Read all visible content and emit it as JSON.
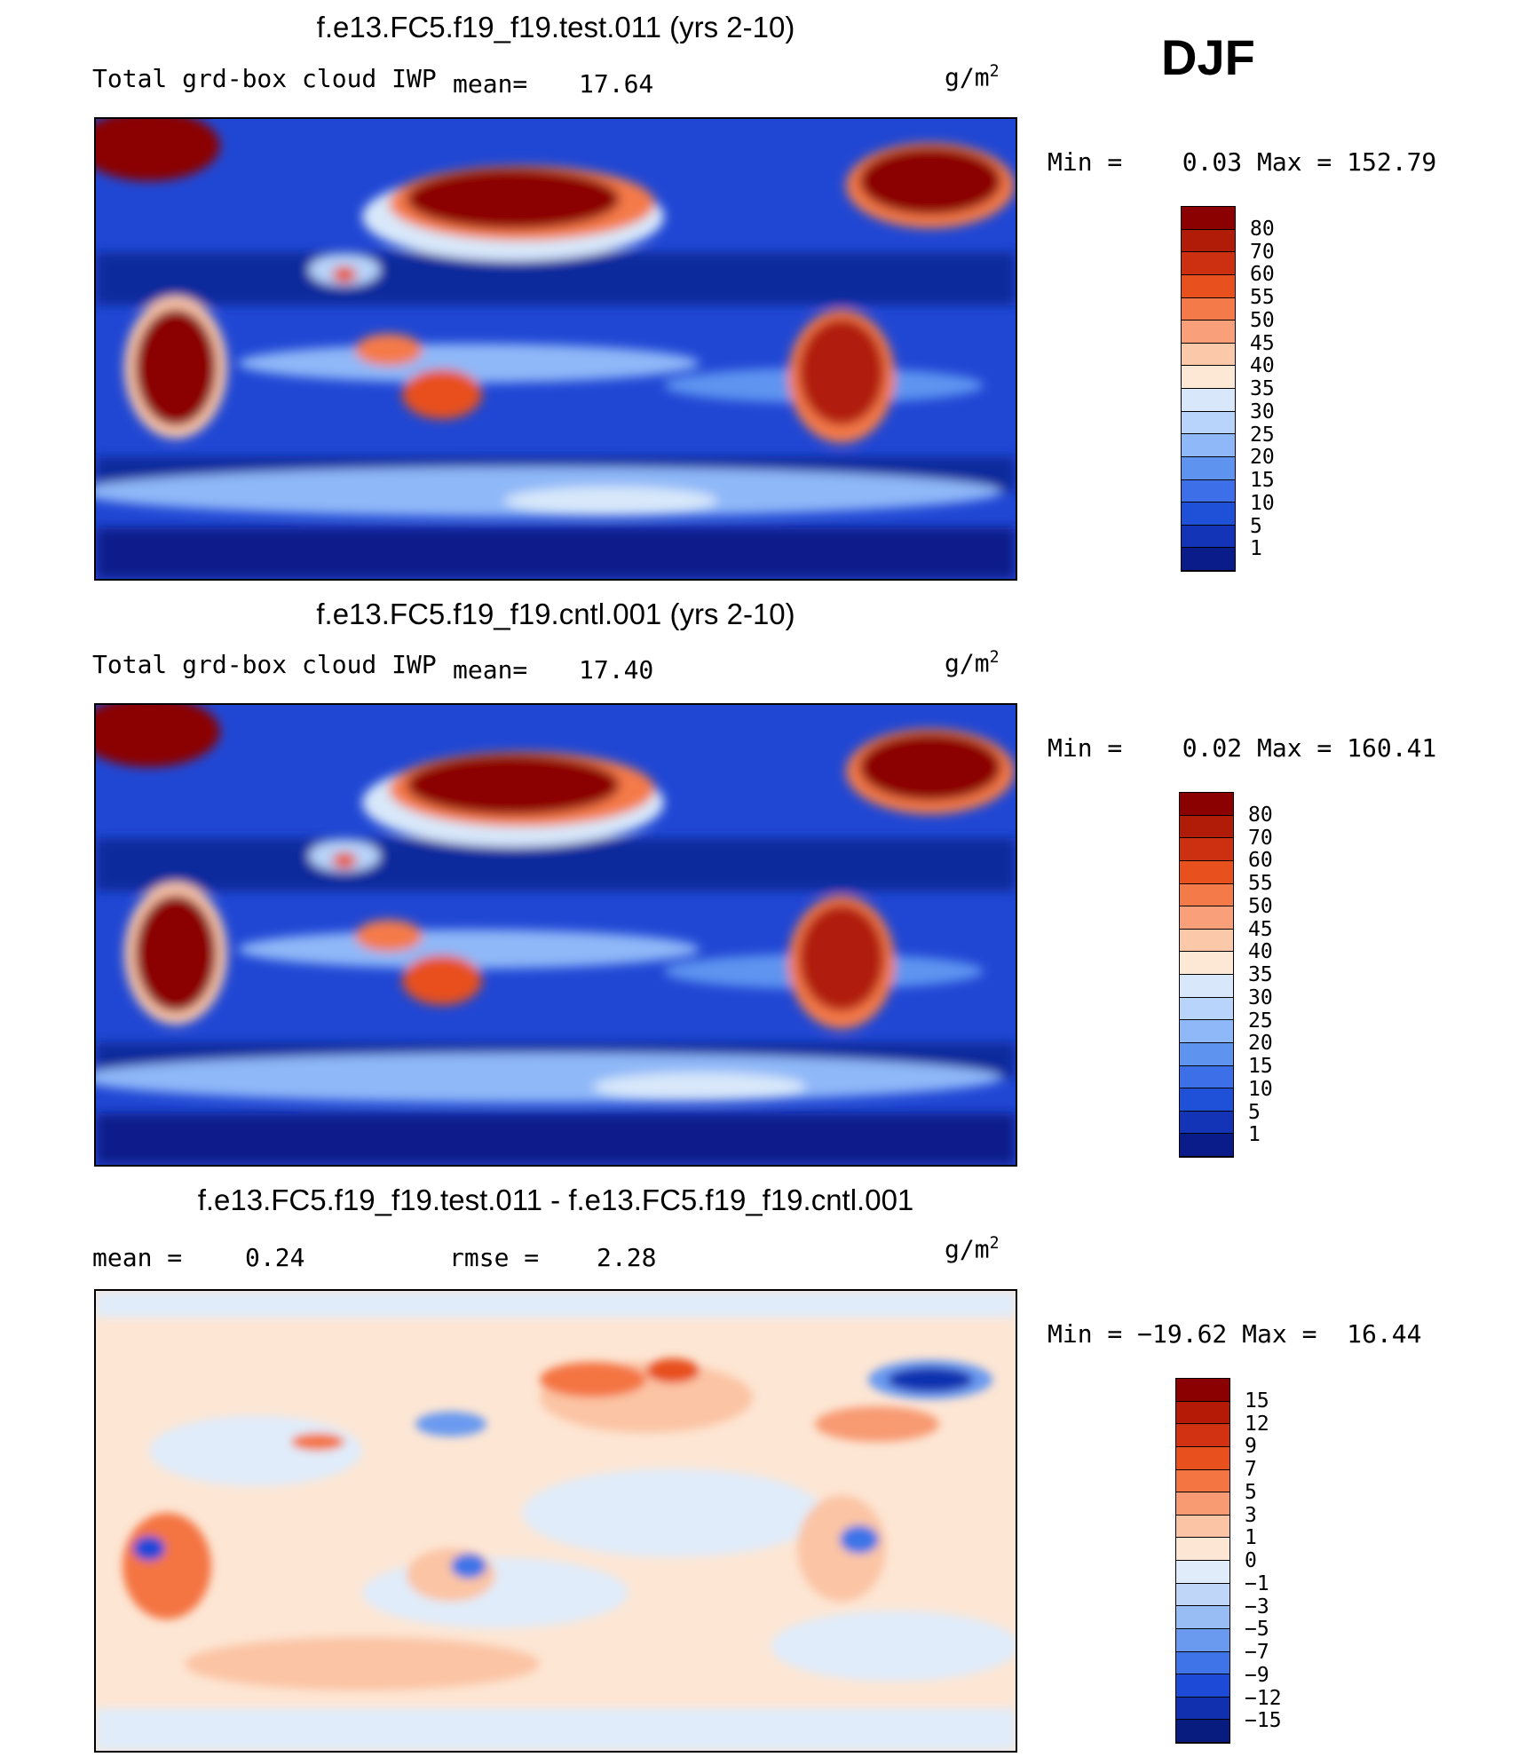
{
  "season": "DJF",
  "panels": [
    {
      "id": "test",
      "title": "f.e13.FC5.f19_f19.test.011 (yrs 2-10)",
      "variable": "Total grd-box cloud IWP",
      "stat1_label": "mean=",
      "stat1_value": "17.64",
      "units": "g/m",
      "units_sup": "2",
      "minmax": "Min =    0.03 Max = 152.79",
      "levels": [
        "80",
        "70",
        "60",
        "55",
        "50",
        "45",
        "40",
        "35",
        "30",
        "25",
        "20",
        "15",
        "10",
        "5",
        "1"
      ],
      "colors": [
        "#8b0000",
        "#b01c08",
        "#cc3010",
        "#e8501e",
        "#f57a4a",
        "#f9a07a",
        "#fcc8aa",
        "#fde8d6",
        "#d8e8fa",
        "#b8d4fa",
        "#8fb8f8",
        "#5e94f0",
        "#3d6fe8",
        "#1e50d8",
        "#1434b8",
        "#0a1c8a"
      ]
    },
    {
      "id": "cntl",
      "title": "f.e13.FC5.f19_f19.cntl.001 (yrs 2-10)",
      "variable": "Total grd-box cloud IWP",
      "stat1_label": "mean=",
      "stat1_value": "17.40",
      "units": "g/m",
      "units_sup": "2",
      "minmax": "Min =    0.02 Max = 160.41",
      "levels": [
        "80",
        "70",
        "60",
        "55",
        "50",
        "45",
        "40",
        "35",
        "30",
        "25",
        "20",
        "15",
        "10",
        "5",
        "1"
      ],
      "colors": [
        "#8b0000",
        "#b01c08",
        "#cc3010",
        "#e8501e",
        "#f57a4a",
        "#f9a07a",
        "#fcc8aa",
        "#fde8d6",
        "#d8e8fa",
        "#b8d4fa",
        "#8fb8f8",
        "#5e94f0",
        "#3d6fe8",
        "#1e50d8",
        "#1434b8",
        "#0a1c8a"
      ]
    },
    {
      "id": "diff",
      "title": "f.e13.FC5.f19_f19.test.011 - f.e13.FC5.f19_f19.cntl.001",
      "stat1_label": "mean =",
      "stat1_value": "0.24",
      "stat2_label": "rmse =",
      "stat2_value": "2.28",
      "units": "g/m",
      "units_sup": "2",
      "minmax": "Min = −19.62 Max =  16.44",
      "levels": [
        "15",
        "12",
        "9",
        "7",
        "5",
        "3",
        "1",
        "0",
        "−1",
        "−3",
        "−5",
        "−7",
        "−9",
        "−12",
        "−15"
      ],
      "colors": [
        "#8b0000",
        "#b41a06",
        "#d23212",
        "#e8501e",
        "#f47442",
        "#f89a72",
        "#fbc4a4",
        "#fde6d4",
        "#e0ecfa",
        "#c0d6f8",
        "#98bcf4",
        "#6a9af0",
        "#3e74e8",
        "#1e4ad8",
        "#1030b0",
        "#081c80"
      ]
    }
  ]
}
